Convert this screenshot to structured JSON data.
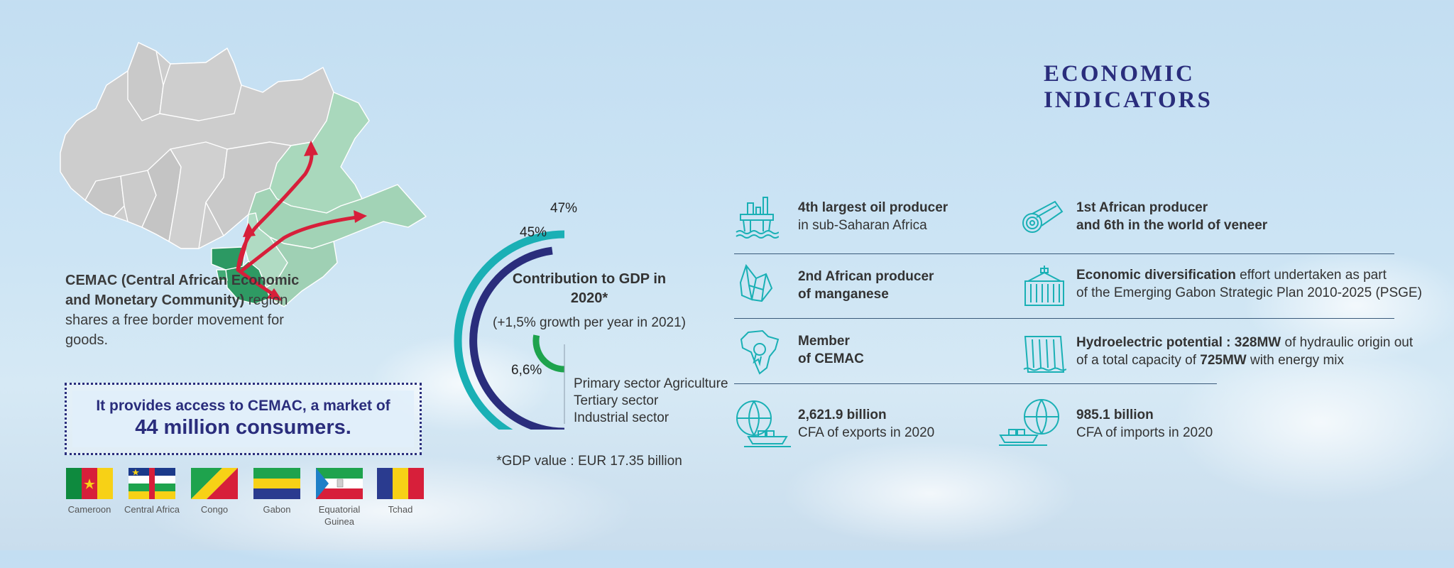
{
  "title": "ECONOMIC INDICATORS",
  "colors": {
    "navy": "#2a2d7c",
    "teal": "#1ab0b5",
    "green": "#1ea34d",
    "red": "#d71f3a",
    "map_grey": "#cccccc",
    "map_green": "#9ed1b3",
    "gabon": "#2e9a63"
  },
  "map": {
    "icon": "central-africa-map-icon"
  },
  "cemac": {
    "bold_text": "CEMAC (Central African Economic and Monetary Community)",
    "rest_text": " region shares a free border movement for goods.",
    "access_line1": "It provides access to CEMAC, a market of",
    "access_line2": "44 million consumers."
  },
  "flags": [
    {
      "label": "Cameroon",
      "icon": "cameroon-flag-icon"
    },
    {
      "label": "Central Africa",
      "icon": "central-africa-flag-icon"
    },
    {
      "label": "Congo",
      "icon": "congo-flag-icon"
    },
    {
      "label": "Gabon",
      "icon": "gabon-flag-icon"
    },
    {
      "label": "Equatorial Guinea",
      "icon": "equatorial-guinea-flag-icon"
    },
    {
      "label": "Tchad",
      "icon": "chad-flag-icon"
    }
  ],
  "gdp": {
    "title": "Contribution to GDP in 2020*",
    "growth": "(+1,5% growth per year in 2021)",
    "value_note": "*GDP value : EUR 17.35 billion"
  },
  "chart_data": {
    "type": "pie",
    "title": "Contribution to GDP in 2020*",
    "series": [
      {
        "name": "Tertiary sector",
        "value": 47,
        "label": "47%",
        "color": "#1ab0b5"
      },
      {
        "name": "Industrial sector",
        "value": 45,
        "label": "45%",
        "color": "#2a2d7c"
      },
      {
        "name": "Primary sector Agriculture",
        "value": 6.6,
        "label": "6,6%",
        "color": "#1ea34d"
      }
    ],
    "legend": [
      "Primary sector Agriculture",
      "Tertiary sector",
      "Industrial sector"
    ]
  },
  "indicators": [
    {
      "icon": "oil-platform-icon",
      "line1_bold": "4th largest oil producer",
      "line2": "in sub-Saharan Africa"
    },
    {
      "icon": "veneer-roll-icon",
      "line1_bold": "1st African producer",
      "line2_bold": "and 6th in the world of veneer"
    },
    {
      "icon": "manganese-crystal-icon",
      "line1_bold": "2nd African producer",
      "line2_bold": "of manganese"
    },
    {
      "icon": "container-icon",
      "line1_bold": "Economic diversification",
      "line1_rest": " effort undertaken as part",
      "line2": "of the Emerging Gabon Strategic Plan 2010-2025 (PSGE)"
    },
    {
      "icon": "africa-map-badge-icon",
      "line1_bold": "Member",
      "line2_bold": "of CEMAC"
    },
    {
      "icon": "hydroelectric-dam-icon",
      "line1_bold": "Hydroelectric potential : 328MW",
      "line1_rest": " of hydraulic origin out",
      "line2_a": "of a total capacity of ",
      "line2_bold": "725MW",
      "line2_b": " with energy mix"
    },
    {
      "icon": "export-ship-globe-icon",
      "line1_bold": "2,621.9 billion",
      "line2": "CFA of exports in 2020"
    },
    {
      "icon": "import-ship-globe-icon",
      "line1_bold": "985.1 billion",
      "line2": "CFA of imports in 2020"
    }
  ]
}
